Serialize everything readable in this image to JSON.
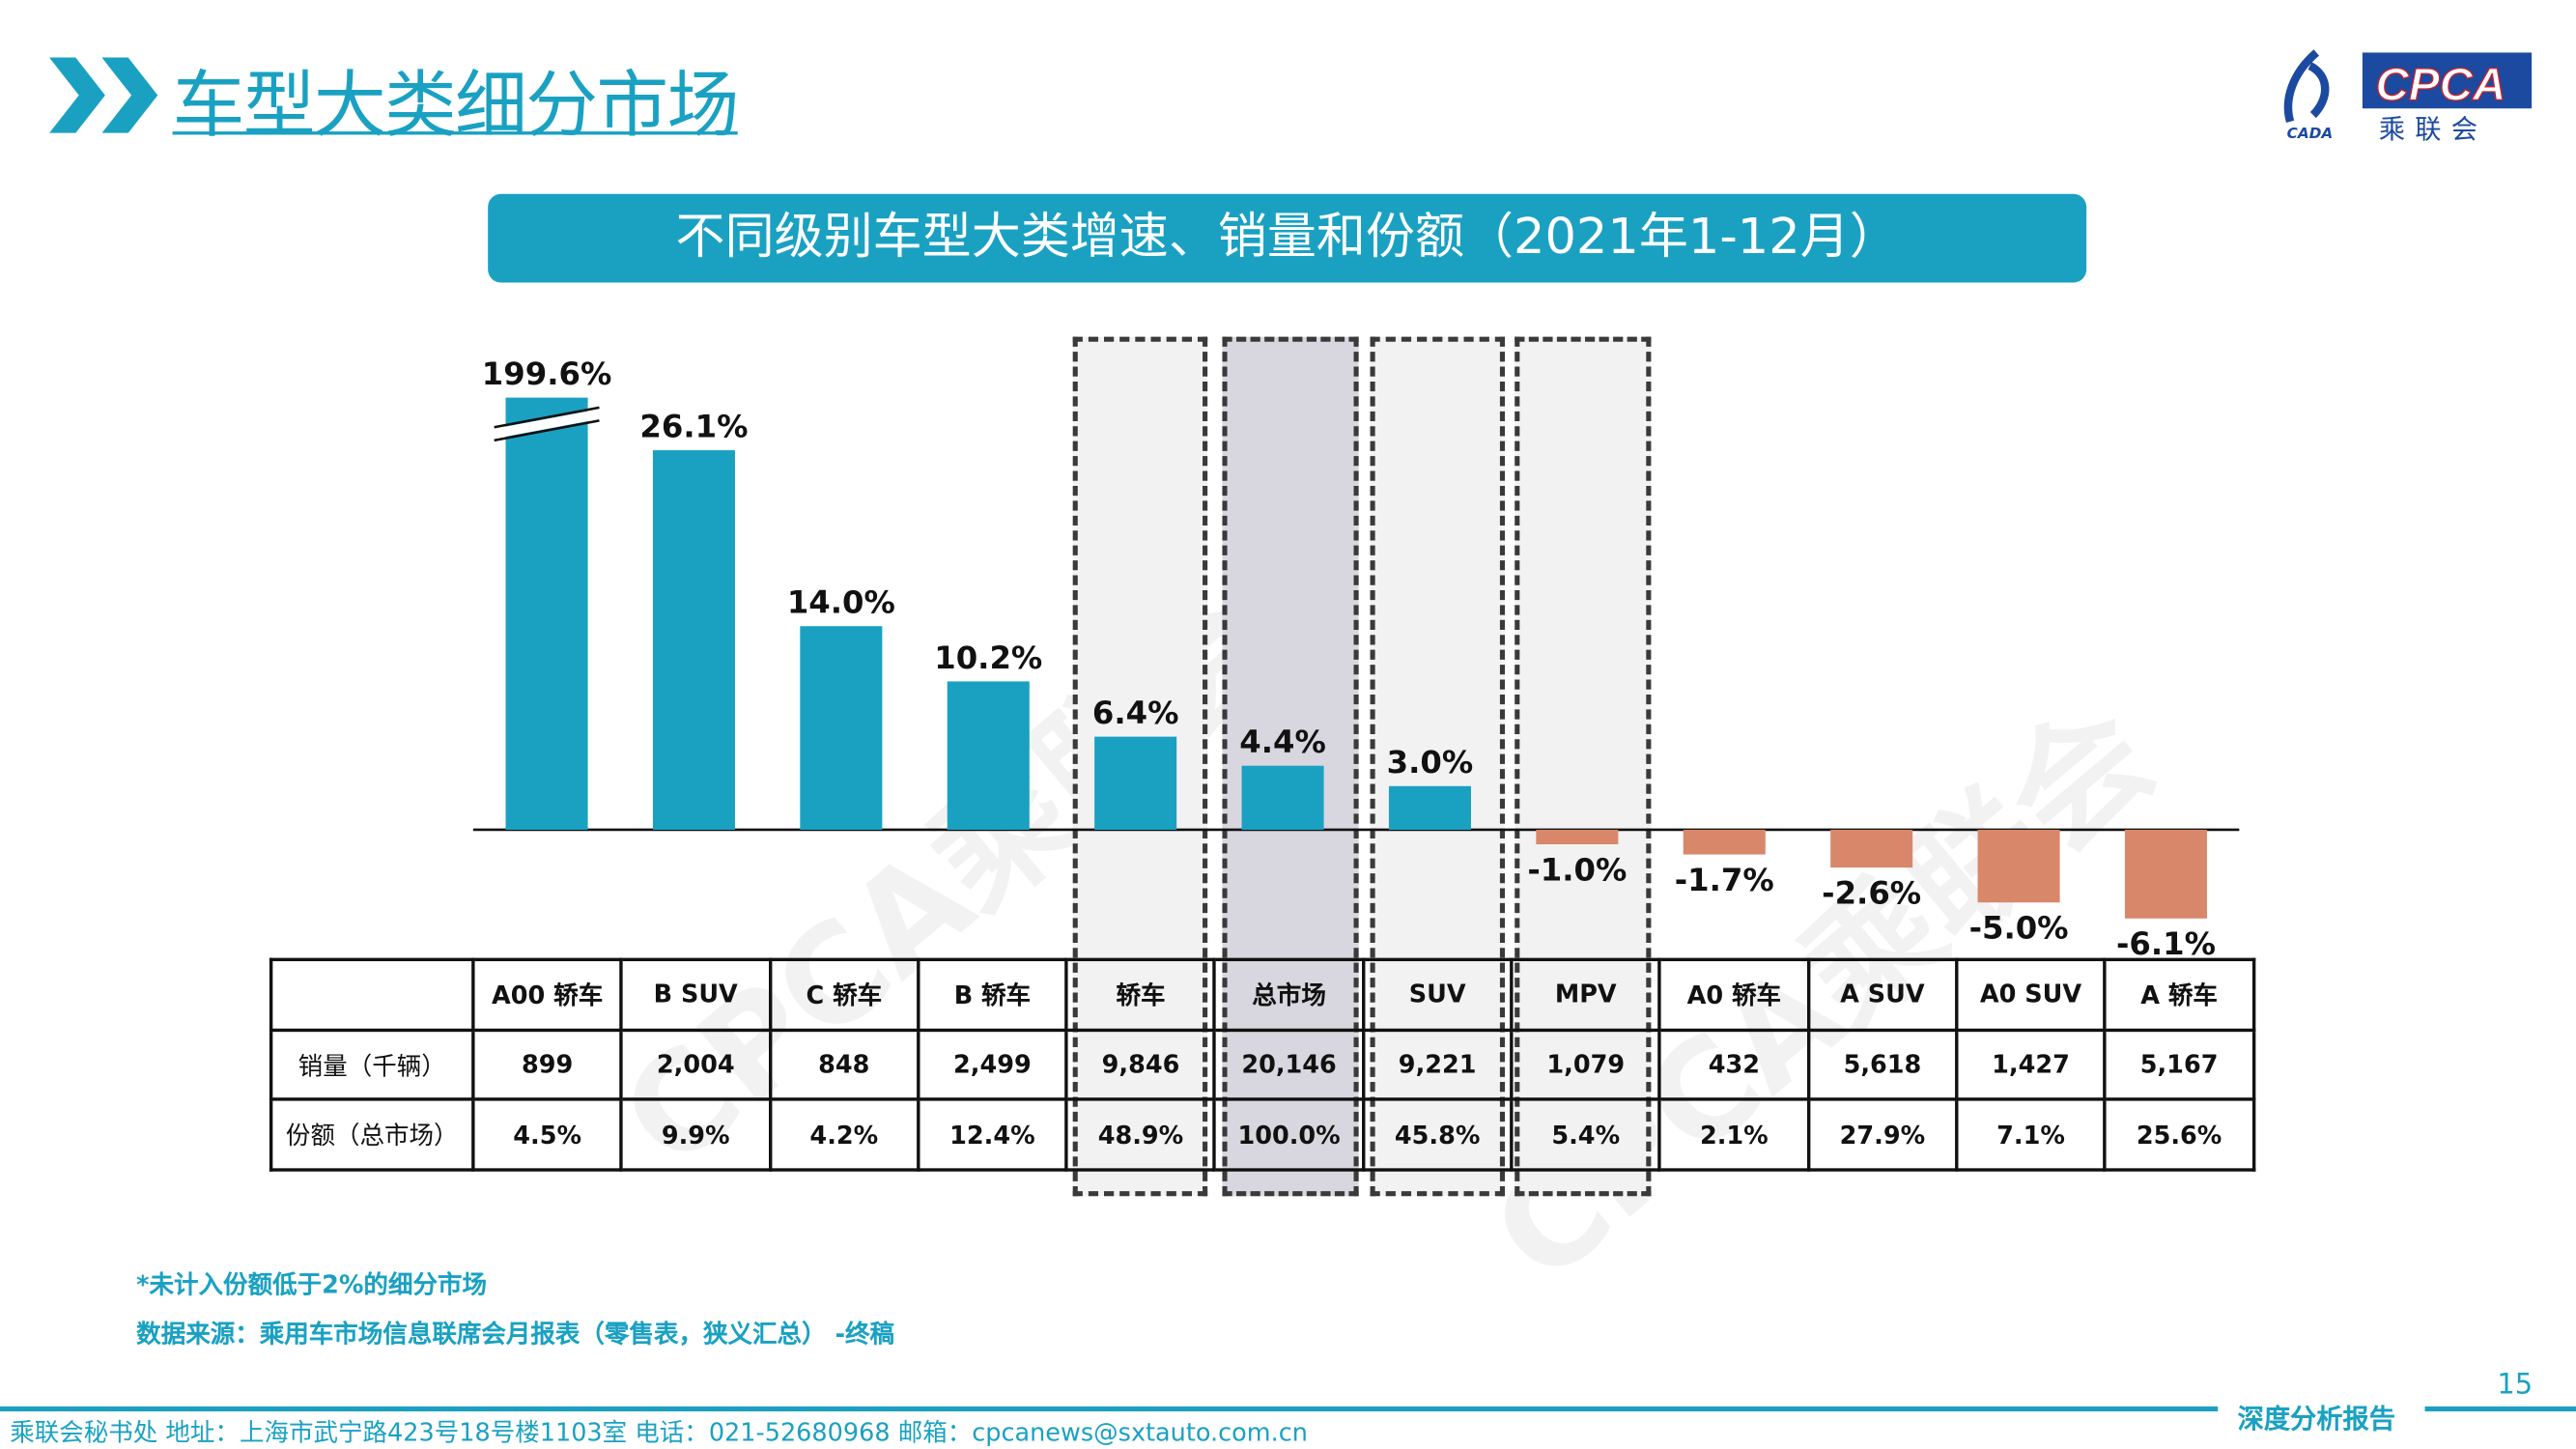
{
  "header": {
    "title": "车型大类细分市场",
    "logo_text": "CPCA",
    "logo_sub": "乘联会",
    "logo_small": "CADA"
  },
  "watermark": "CPCA乘联会",
  "colors": {
    "accent": "#1aa1c2",
    "positive": "#1aa1c2",
    "negative": "#d9876a"
  },
  "chart_data": {
    "type": "bar",
    "title": "不同级别车型大类增速、销量和份额（2021年1-12月）",
    "categories": [
      "A00 轿车",
      "B SUV",
      "C 轿车",
      "B 轿车",
      "轿车",
      "总市场",
      "SUV",
      "MPV",
      "A0 轿车",
      "A SUV",
      "A0 SUV",
      "A 轿车"
    ],
    "values": [
      199.6,
      26.1,
      14.0,
      10.2,
      6.4,
      4.4,
      3.0,
      -1.0,
      -1.7,
      -2.6,
      -5.0,
      -6.1
    ],
    "data_labels": [
      "199.6%",
      "26.1%",
      "14.0%",
      "10.2%",
      "6.4%",
      "4.4%",
      "3.0%",
      "-1.0%",
      "-1.7%",
      "-2.6%",
      "-5.0%",
      "-6.1%"
    ],
    "axis_break_on": "A00 轿车",
    "highlighted": [
      "轿车",
      "总市场",
      "SUV",
      "MPV"
    ],
    "grid": false,
    "table": {
      "row_headers": [
        "销量（千辆）",
        "份额（总市场）"
      ],
      "sales": [
        "899",
        "2,004",
        "848",
        "2,499",
        "9,846",
        "20,146",
        "9,221",
        "1,079",
        "432",
        "5,618",
        "1,427",
        "5,167"
      ],
      "share": [
        "4.5%",
        "9.9%",
        "4.2%",
        "12.4%",
        "48.9%",
        "100.0%",
        "45.8%",
        "5.4%",
        "2.1%",
        "27.9%",
        "7.1%",
        "25.6%"
      ]
    }
  },
  "notes": {
    "note1": "*未计入份额低于2%的细分市场",
    "source": "数据来源：乘用车市场信息联席会月报表（零售表，狭义汇总） -终稿"
  },
  "footer": {
    "page": "15",
    "tag": "深度分析报告",
    "text": "乘联会秘书处   地址：上海市武宁路423号18号楼1103室   电话：021-52680968   邮箱：cpcanews@sxtauto.com.cn"
  }
}
